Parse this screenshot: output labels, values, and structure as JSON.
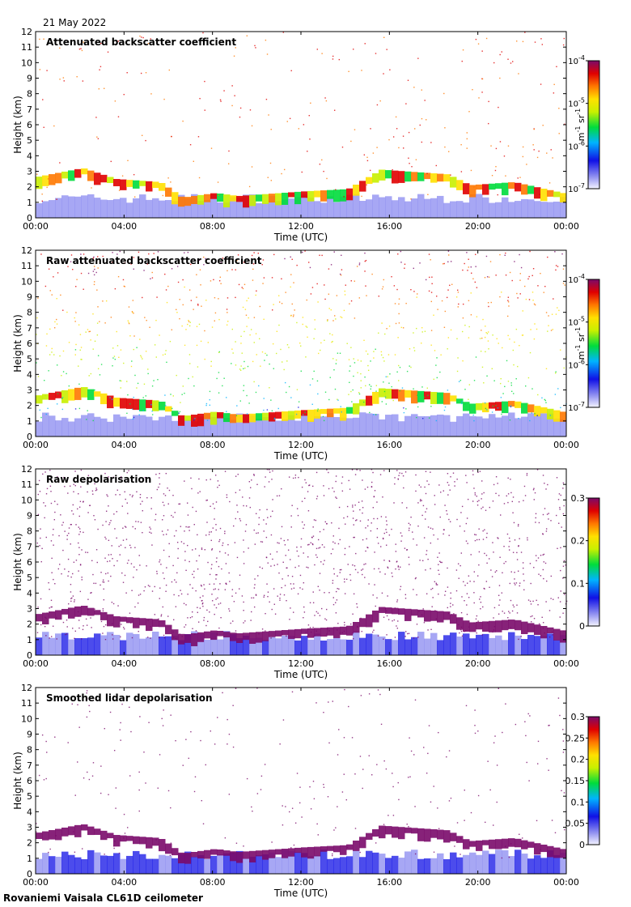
{
  "date_label": "21 May 2022",
  "footer_label": "Rovaniemi Vaisala CL61D ceilometer",
  "chart_data": [
    {
      "type": "heatmap",
      "title": "Attenuated backscatter coefficient",
      "xlabel": "Time (UTC)",
      "ylabel": "Height (km)",
      "x_ticks": [
        "00:00",
        "04:00",
        "08:00",
        "12:00",
        "16:00",
        "20:00",
        "00:00"
      ],
      "y_ticks": [
        0,
        1,
        2,
        3,
        4,
        5,
        6,
        7,
        8,
        9,
        10,
        11,
        12
      ],
      "ylim": [
        0,
        12
      ],
      "colorbar": {
        "scale": "log",
        "range": [
          1e-07,
          0.0001
        ],
        "ticks": [
          {
            "base": "10",
            "exp": "-7",
            "value": 1e-07
          },
          {
            "base": "10",
            "exp": "-6",
            "value": 1e-06
          },
          {
            "base": "10",
            "exp": "-5",
            "value": 1e-05
          },
          {
            "base": "10",
            "exp": "-4",
            "value": 0.0001
          }
        ],
        "unit_parts": [
          "m",
          "-1",
          " sr",
          "-1"
        ]
      },
      "cloud_base_km": [
        {
          "time_h": 0.0,
          "height_km": 2.55
        },
        {
          "time_h": 2.0,
          "height_km": 3.1
        },
        {
          "time_h": 3.5,
          "height_km": 2.4
        },
        {
          "time_h": 5.5,
          "height_km": 2.2
        },
        {
          "time_h": 6.5,
          "height_km": 1.2
        },
        {
          "time_h": 8.0,
          "height_km": 1.5
        },
        {
          "time_h": 9.0,
          "height_km": 1.3
        },
        {
          "time_h": 12.0,
          "height_km": 1.6
        },
        {
          "time_h": 14.0,
          "height_km": 1.75
        },
        {
          "time_h": 15.5,
          "height_km": 3.0
        },
        {
          "time_h": 18.5,
          "height_km": 2.7
        },
        {
          "time_h": 19.5,
          "height_km": 2.0
        },
        {
          "time_h": 21.5,
          "height_km": 2.2
        },
        {
          "time_h": 24.0,
          "height_km": 1.4
        }
      ]
    },
    {
      "type": "heatmap",
      "title": "Raw attenuated backscatter coefficient",
      "xlabel": "Time (UTC)",
      "ylabel": "Height (km)",
      "x_ticks": [
        "00:00",
        "04:00",
        "08:00",
        "12:00",
        "16:00",
        "20:00",
        "00:00"
      ],
      "y_ticks": [
        0,
        1,
        2,
        3,
        4,
        5,
        6,
        7,
        8,
        9,
        10,
        11,
        12
      ],
      "ylim": [
        0,
        12
      ],
      "colorbar": {
        "scale": "log",
        "range": [
          1e-07,
          0.0001
        ],
        "ticks": [
          {
            "base": "10",
            "exp": "-7",
            "value": 1e-07
          },
          {
            "base": "10",
            "exp": "-6",
            "value": 1e-06
          },
          {
            "base": "10",
            "exp": "-5",
            "value": 1e-05
          },
          {
            "base": "10",
            "exp": "-4",
            "value": 0.0001
          }
        ],
        "unit_parts": [
          "m",
          "-1",
          " sr",
          "-1"
        ]
      }
    },
    {
      "type": "heatmap",
      "title": "Raw depolarisation",
      "xlabel": "Time (UTC)",
      "ylabel": "Height (km)",
      "x_ticks": [
        "00:00",
        "04:00",
        "08:00",
        "12:00",
        "16:00",
        "20:00",
        "00:00"
      ],
      "y_ticks": [
        0,
        1,
        2,
        3,
        4,
        5,
        6,
        7,
        8,
        9,
        10,
        11,
        12
      ],
      "ylim": [
        0,
        12
      ],
      "colorbar": {
        "scale": "linear",
        "range": [
          0,
          0.3
        ],
        "ticks": [
          {
            "label": "0",
            "value": 0
          },
          {
            "label": "0.1",
            "value": 0.1
          },
          {
            "label": "0.2",
            "value": 0.2
          },
          {
            "label": "0.3",
            "value": 0.3
          }
        ]
      }
    },
    {
      "type": "heatmap",
      "title": "Smoothed lidar depolarisation",
      "xlabel": "Time (UTC)",
      "ylabel": "Height (km)",
      "x_ticks": [
        "00:00",
        "04:00",
        "08:00",
        "12:00",
        "16:00",
        "20:00",
        "00:00"
      ],
      "y_ticks": [
        0,
        1,
        2,
        3,
        4,
        5,
        6,
        7,
        8,
        9,
        10,
        11,
        12
      ],
      "ylim": [
        0,
        12
      ],
      "colorbar": {
        "scale": "linear",
        "range": [
          0,
          0.3
        ],
        "ticks": [
          {
            "label": "0",
            "value": 0
          },
          {
            "label": "0.05",
            "value": 0.05
          },
          {
            "label": "0.1",
            "value": 0.1
          },
          {
            "label": "0.15",
            "value": 0.15
          },
          {
            "label": "0.2",
            "value": 0.2
          },
          {
            "label": "0.25",
            "value": 0.25
          },
          {
            "label": "0.3",
            "value": 0.3
          }
        ]
      }
    }
  ]
}
